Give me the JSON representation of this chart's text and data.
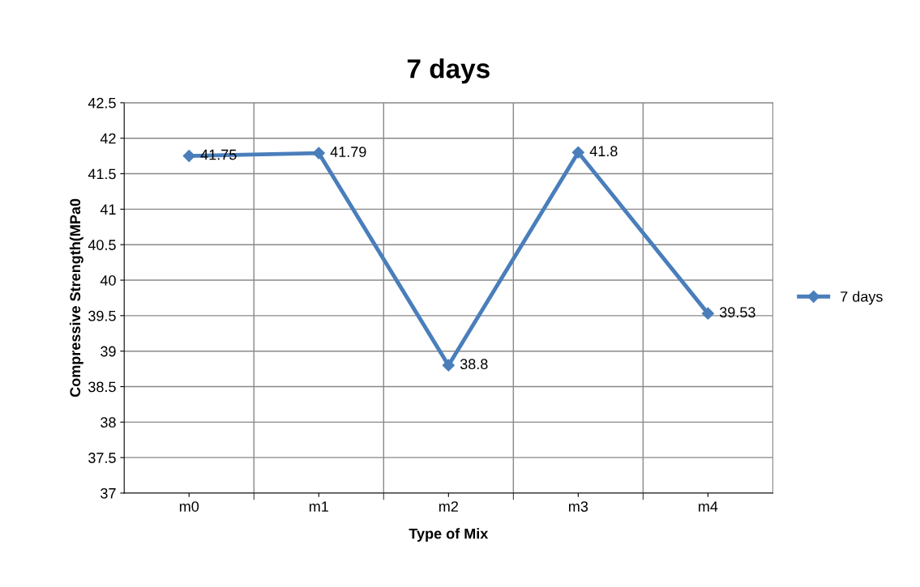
{
  "chart_data": {
    "type": "line",
    "title": "7 days",
    "xlabel": "Type of Mix",
    "ylabel": "Compressive Strength(MPa0",
    "categories": [
      "m0",
      "m1",
      "m2",
      "m3",
      "m4"
    ],
    "series": [
      {
        "name": "7 days",
        "color": "#4a7ebb",
        "values": [
          41.75,
          41.79,
          38.8,
          41.8,
          39.53
        ]
      }
    ],
    "ylim": [
      37,
      42.5
    ],
    "yticks": [
      37,
      37.5,
      38,
      38.5,
      39,
      39.5,
      40,
      40.5,
      41,
      41.5,
      42,
      42.5
    ],
    "grid": true,
    "legend": "right",
    "marker": "diamond",
    "line_style": "solid",
    "data_labels": true
  }
}
